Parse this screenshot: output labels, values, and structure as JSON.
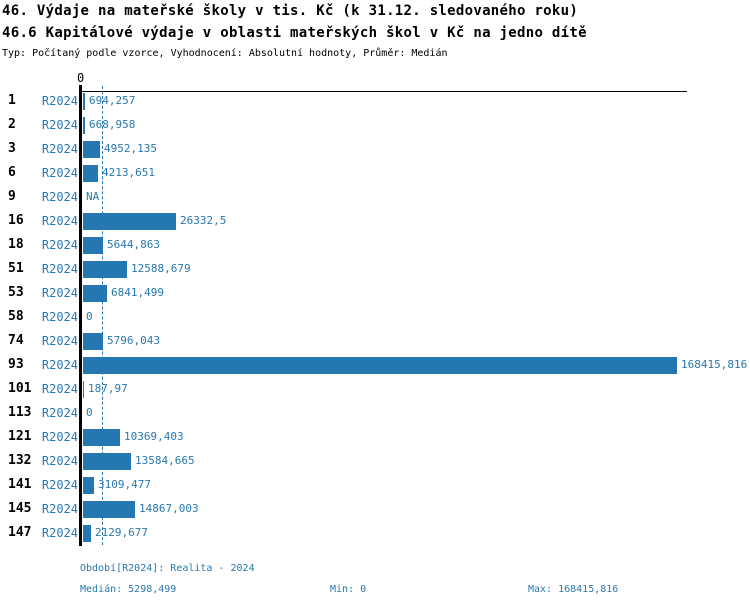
{
  "header": {
    "title_line1": "46. Výdaje na mateřské školy v tis. Kč (k 31.12. sledovaného roku)",
    "title_line2": "46.6 Kapitálové výdaje v oblasti mateřských škol v Kč na jedno dítě",
    "subtitle": "Typ: Počítaný podle vzorce, Vyhodnocení: Absolutní hodnoty, Průměr: Medián"
  },
  "colors": {
    "accent": "#2878b0",
    "bar": "#2577b2",
    "axis": "#000000",
    "background": "#ffffff"
  },
  "chart_data": {
    "type": "bar",
    "orientation": "horizontal",
    "axis_zero_label": "0",
    "xlim": [
      0,
      168415.816
    ],
    "grid": false,
    "median_value": 5298.499,
    "min_value": 0,
    "max_value": 168415.816,
    "period": "R2024",
    "categories": [
      "1",
      "2",
      "3",
      "6",
      "9",
      "16",
      "18",
      "51",
      "53",
      "58",
      "74",
      "93",
      "101",
      "113",
      "121",
      "132",
      "141",
      "145",
      "147"
    ],
    "rows": [
      {
        "id": "1",
        "period": "R2024",
        "value": 694.257,
        "label": "694,257"
      },
      {
        "id": "2",
        "period": "R2024",
        "value": 668.958,
        "label": "668,958"
      },
      {
        "id": "3",
        "period": "R2024",
        "value": 4952.135,
        "label": "4952,135"
      },
      {
        "id": "6",
        "period": "R2024",
        "value": 4213.651,
        "label": "4213,651"
      },
      {
        "id": "9",
        "period": "R2024",
        "value": null,
        "label": "NA"
      },
      {
        "id": "16",
        "period": "R2024",
        "value": 26332.5,
        "label": "26332,5"
      },
      {
        "id": "18",
        "period": "R2024",
        "value": 5644.863,
        "label": "5644,863"
      },
      {
        "id": "51",
        "period": "R2024",
        "value": 12588.679,
        "label": "12588,679"
      },
      {
        "id": "53",
        "period": "R2024",
        "value": 6841.499,
        "label": "6841,499"
      },
      {
        "id": "58",
        "period": "R2024",
        "value": 0,
        "label": "0"
      },
      {
        "id": "74",
        "period": "R2024",
        "value": 5796.043,
        "label": "5796,043"
      },
      {
        "id": "93",
        "period": "R2024",
        "value": 168415.816,
        "label": "168415,816"
      },
      {
        "id": "101",
        "period": "R2024",
        "value": 187.97,
        "label": "187,97"
      },
      {
        "id": "113",
        "period": "R2024",
        "value": 0,
        "label": "0"
      },
      {
        "id": "121",
        "period": "R2024",
        "value": 10369.403,
        "label": "10369,403"
      },
      {
        "id": "132",
        "period": "R2024",
        "value": 13584.665,
        "label": "13584,665"
      },
      {
        "id": "141",
        "period": "R2024",
        "value": 3109.477,
        "label": "3109,477"
      },
      {
        "id": "145",
        "period": "R2024",
        "value": 14867.003,
        "label": "14867,003"
      },
      {
        "id": "147",
        "period": "R2024",
        "value": 2129.677,
        "label": "2129,677"
      }
    ]
  },
  "footer": {
    "period": "Období[R2024]: Realita - 2024",
    "median": "Medián: 5298,499",
    "min": "Min: 0",
    "max": "Max: 168415,816"
  }
}
